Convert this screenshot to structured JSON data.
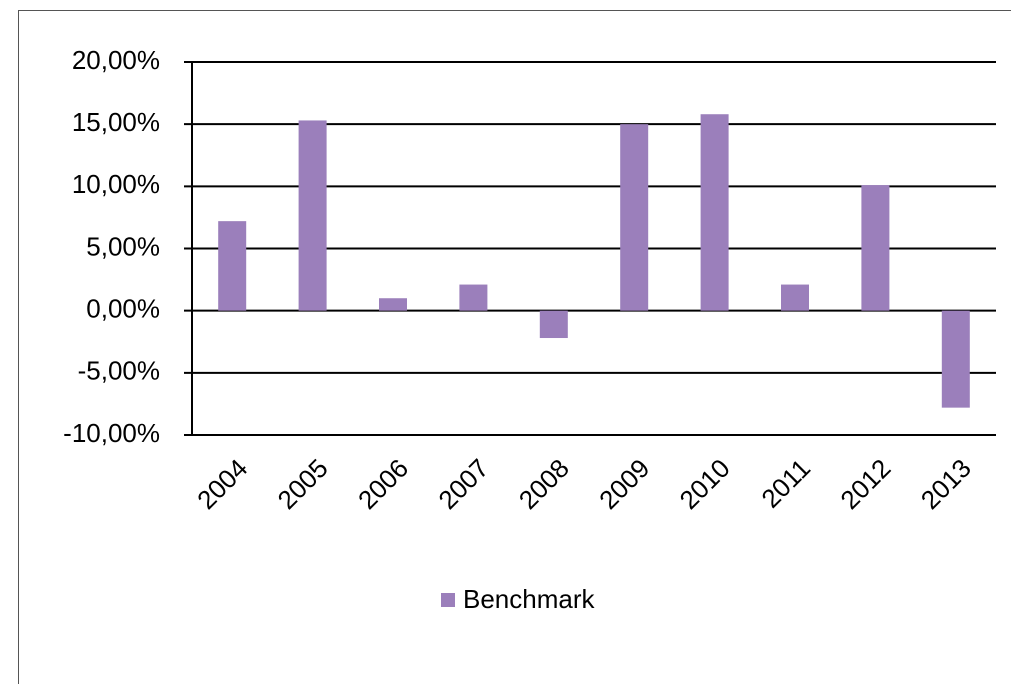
{
  "chart_data": {
    "type": "bar",
    "categories": [
      "2004",
      "2005",
      "2006",
      "2007",
      "2008",
      "2009",
      "2010",
      "2011",
      "2012",
      "2013"
    ],
    "series": [
      {
        "name": "Benchmark",
        "color": "#9b7fbb",
        "values": [
          7.2,
          15.3,
          1.0,
          2.1,
          -2.2,
          15.0,
          15.8,
          2.1,
          10.1,
          -7.8
        ]
      }
    ],
    "ylim": [
      -10,
      20
    ],
    "yticks": [
      {
        "value": -10,
        "label": "-10,00%"
      },
      {
        "value": -5,
        "label": "-5,00%"
      },
      {
        "value": 0,
        "label": "0,00%"
      },
      {
        "value": 5,
        "label": "5,00%"
      },
      {
        "value": 10,
        "label": "10,00%"
      },
      {
        "value": 15,
        "label": "15,00%"
      },
      {
        "value": 20,
        "label": "20,00%"
      }
    ],
    "grid": true,
    "legend": "bottom"
  }
}
